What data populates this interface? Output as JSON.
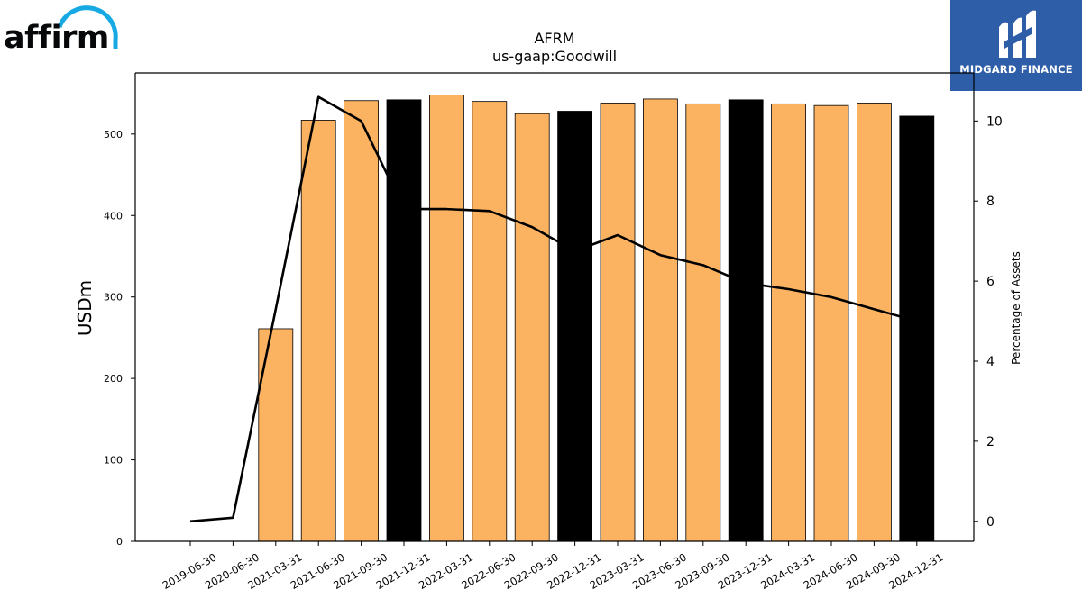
{
  "brand": {
    "left_logo_text": "affirm",
    "left_logo_accent": "#16a9e4",
    "right_logo_text": "MIDGARD FINANCE",
    "right_logo_bg": "#2f5ea9"
  },
  "chart_data": {
    "type": "bar",
    "title": "AFRM",
    "subtitle": "us-gaap:Goodwill",
    "ylabel": "USDm",
    "y2label": "Percentage of Assets",
    "categories": [
      "2019-06-30",
      "2020-06-30",
      "2021-03-31",
      "2021-06-30",
      "2021-09-30",
      "2021-12-31",
      "2022-03-31",
      "2022-06-30",
      "2022-09-30",
      "2022-12-31",
      "2023-03-31",
      "2023-06-30",
      "2023-09-30",
      "2023-12-31",
      "2024-03-31",
      "2024-06-30",
      "2024-09-30",
      "2024-12-31"
    ],
    "series": [
      {
        "type": "bar",
        "axis": "left",
        "values": [
          0,
          0,
          261,
          517,
          541,
          542,
          548,
          540,
          525,
          528,
          538,
          543,
          537,
          542,
          537,
          535,
          538,
          522
        ],
        "colors": [
          "#fbb362",
          "#fbb362",
          "#fbb362",
          "#fbb362",
          "#fbb362",
          "#000000",
          "#fbb362",
          "#fbb362",
          "#fbb362",
          "#000000",
          "#fbb362",
          "#fbb362",
          "#fbb362",
          "#000000",
          "#fbb362",
          "#fbb362",
          "#fbb362",
          "#000000"
        ]
      },
      {
        "type": "line",
        "axis": "right",
        "color": "#000000",
        "values": [
          0.0,
          0.09,
          5.3,
          10.6,
          10.0,
          7.8,
          7.8,
          7.75,
          7.35,
          6.75,
          7.15,
          6.65,
          6.4,
          5.95,
          5.8,
          5.6,
          5.3,
          5.0
        ]
      }
    ],
    "ylim": [
      0,
      575
    ],
    "yticks": [
      0,
      100,
      200,
      300,
      400,
      500
    ],
    "y2lim": [
      -0.5,
      11.2
    ],
    "y2ticks": [
      0,
      2,
      4,
      6,
      8,
      10
    ],
    "grid": false,
    "legend": "none"
  }
}
